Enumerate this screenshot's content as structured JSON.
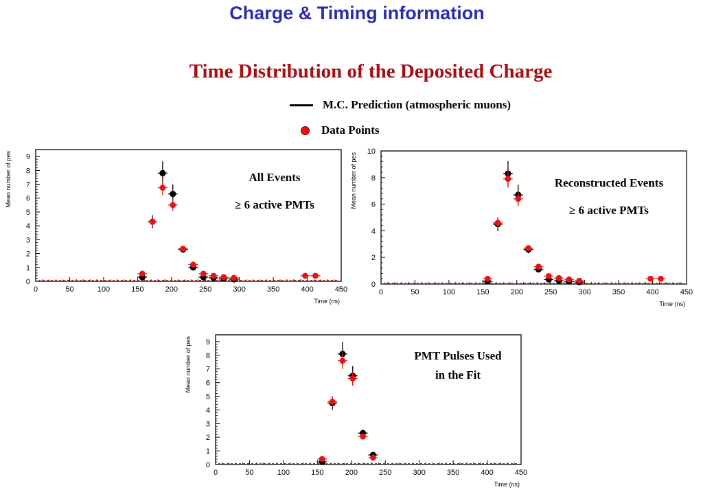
{
  "slide": {
    "title": "Charge & Timing information",
    "figure_title": "Time Distribution of the Deposited Charge",
    "legend": [
      {
        "label": "M.C. Prediction (atmospheric muons)",
        "marker": "line",
        "color": "#000000"
      },
      {
        "label": "Data Points",
        "marker": "dot",
        "color": "#e31515"
      }
    ]
  },
  "chart_data": [
    {
      "type": "scatter",
      "annotation": [
        "All Events",
        "≥ 6 active PMTs"
      ],
      "xlabel": "Time (ns)",
      "ylabel": "Mean number of pes",
      "xlim": [
        0,
        450
      ],
      "ylim": [
        0,
        9.5
      ],
      "xticks": [
        0,
        50,
        100,
        150,
        200,
        250,
        300,
        350,
        400,
        450
      ],
      "yticks": [
        0,
        1,
        2,
        3,
        4,
        5,
        6,
        7,
        8,
        9
      ],
      "series": [
        {
          "role": "mc",
          "color": "#000000",
          "x": [
            157,
            172,
            187,
            202,
            217,
            232,
            247,
            262,
            277,
            292
          ],
          "y": [
            0.3,
            4.3,
            7.8,
            6.3,
            2.3,
            1.0,
            0.3,
            0.25,
            0.2,
            0.15
          ]
        },
        {
          "role": "data",
          "color": "#e31515",
          "x": [
            157,
            172,
            187,
            202,
            217,
            232,
            247,
            262,
            277,
            292,
            397,
            412
          ],
          "y": [
            0.55,
            4.3,
            6.75,
            5.5,
            2.35,
            1.2,
            0.55,
            0.4,
            0.3,
            0.25,
            0.4,
            0.4
          ]
        }
      ]
    },
    {
      "type": "scatter",
      "annotation": [
        "Reconstructed Events",
        "≥ 6 active PMTs"
      ],
      "xlabel": "Time (ns)",
      "ylabel": "Mean number of pes",
      "xlim": [
        0,
        450
      ],
      "ylim": [
        0,
        10
      ],
      "xticks": [
        0,
        50,
        100,
        150,
        200,
        250,
        300,
        350,
        400,
        450
      ],
      "yticks": [
        0,
        2,
        4,
        6,
        8,
        10
      ],
      "series": [
        {
          "role": "mc",
          "color": "#000000",
          "x": [
            157,
            172,
            187,
            202,
            217,
            232,
            247,
            262,
            277,
            292
          ],
          "y": [
            0.2,
            4.5,
            8.3,
            6.7,
            2.6,
            1.1,
            0.35,
            0.25,
            0.2,
            0.15
          ]
        },
        {
          "role": "data",
          "color": "#e31515",
          "x": [
            157,
            172,
            187,
            202,
            217,
            232,
            247,
            262,
            277,
            292,
            397,
            412
          ],
          "y": [
            0.4,
            4.6,
            7.9,
            6.4,
            2.7,
            1.3,
            0.6,
            0.45,
            0.35,
            0.25,
            0.4,
            0.4
          ]
        }
      ]
    },
    {
      "type": "scatter",
      "annotation": [
        "PMT Pulses Used",
        "in the Fit"
      ],
      "xlabel": "Time (ns)",
      "ylabel": "Mean number of pes",
      "xlim": [
        0,
        450
      ],
      "ylim": [
        0,
        9.5
      ],
      "xticks": [
        0,
        50,
        100,
        150,
        200,
        250,
        300,
        350,
        400,
        450
      ],
      "yticks": [
        0,
        1,
        2,
        3,
        4,
        5,
        6,
        7,
        8,
        9
      ],
      "series": [
        {
          "role": "mc",
          "color": "#000000",
          "x": [
            157,
            172,
            187,
            202,
            217,
            232
          ],
          "y": [
            0.2,
            4.5,
            8.1,
            6.5,
            2.3,
            0.7
          ]
        },
        {
          "role": "data",
          "color": "#e31515",
          "x": [
            157,
            172,
            187,
            202,
            217,
            232
          ],
          "y": [
            0.4,
            4.6,
            7.6,
            6.3,
            2.05,
            0.5
          ]
        }
      ]
    }
  ]
}
